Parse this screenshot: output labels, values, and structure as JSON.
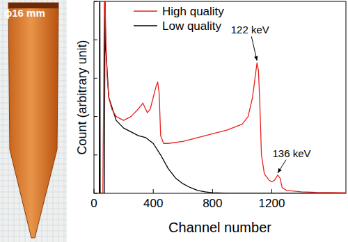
{
  "image_label": "ϕ16 mm",
  "chart_data": {
    "type": "line",
    "x_label": "Channel number",
    "y_label": "Count (arbitrary unit)",
    "xlim": [
      0,
      1700
    ],
    "xticks": [
      0,
      400,
      800,
      1200
    ],
    "ylim": [
      0,
      100
    ],
    "yticks": [
      0,
      20,
      40,
      60,
      80,
      100
    ],
    "tick_labels": "x",
    "legend": "top-center",
    "series": [
      {
        "name": "High quality",
        "color": "#e8211c",
        "x": [
          60,
          70,
          75,
          80,
          90,
          100,
          120,
          150,
          200,
          250,
          300,
          330,
          360,
          380,
          400,
          420,
          430,
          440,
          450,
          470,
          500,
          600,
          700,
          800,
          900,
          1000,
          1040,
          1070,
          1090,
          1100,
          1110,
          1120,
          1130,
          1150,
          1180,
          1200,
          1220,
          1240,
          1255,
          1270,
          1300,
          1400,
          1500,
          1700
        ],
        "values": [
          0,
          100,
          100,
          80,
          60,
          50,
          44,
          40,
          38,
          40,
          44,
          47,
          42,
          44,
          50,
          56,
          58,
          52,
          30,
          26,
          26,
          27,
          29,
          31,
          33,
          36,
          40,
          50,
          62,
          68,
          64,
          45,
          20,
          10,
          7,
          6,
          7,
          9.5,
          8,
          3,
          1.5,
          0.8,
          0.5,
          0.3
        ]
      },
      {
        "name": "Low quality",
        "color": "#000000",
        "x": [
          36,
          38,
          40,
          42,
          70,
          75,
          80,
          100,
          150,
          200,
          250,
          300,
          350,
          400,
          450,
          500,
          550,
          600,
          650,
          700,
          750,
          800,
          900,
          1200,
          1700
        ],
        "values": [
          0,
          100,
          100,
          0,
          0,
          100,
          75,
          50,
          38,
          34,
          32,
          30,
          29,
          26,
          20,
          13,
          8,
          5,
          3,
          1.5,
          0.8,
          0.3,
          0,
          0,
          0
        ]
      }
    ],
    "annotations": [
      {
        "text": "122 keV",
        "x": 1100,
        "y": 68
      },
      {
        "text": "136 keV",
        "x": 1240,
        "y": 9.5
      }
    ]
  }
}
